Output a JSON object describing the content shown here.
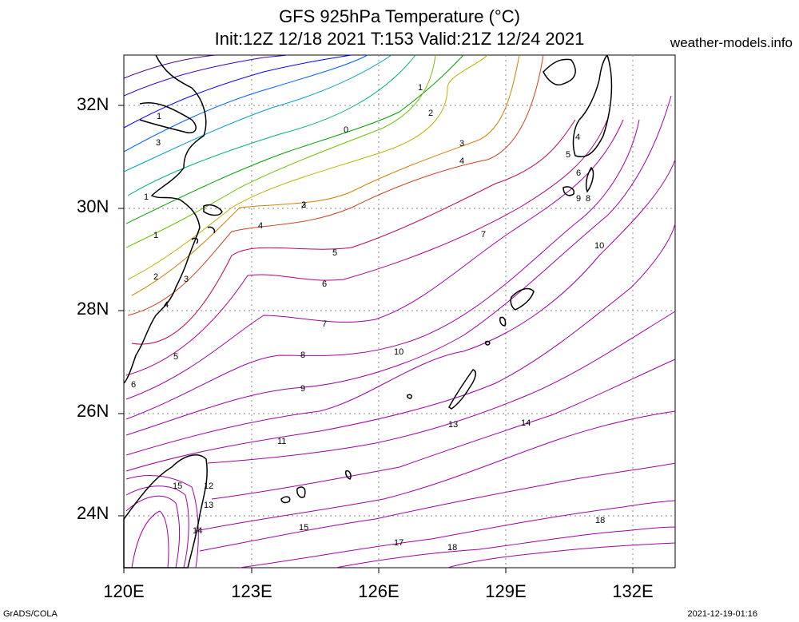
{
  "header": {
    "title_line1": "GFS 925hPa Temperature (°C)",
    "title_line2": "Init:12Z 12/18 2021 T:153 Valid:21Z 12/24 2021",
    "brand": "weather-models.info"
  },
  "footer": {
    "left": "GrADS/COLA",
    "right": "2021-12-19-01:16"
  },
  "axes": {
    "lat_labels": [
      "32N",
      "30N",
      "28N",
      "26N",
      "24N"
    ],
    "lon_labels": [
      "120E",
      "123E",
      "126E",
      "129E",
      "132E"
    ]
  },
  "contour_labels": [
    "1",
    "2",
    "3",
    "4",
    "0",
    "1",
    "2",
    "3",
    "4",
    "5",
    "6",
    "9",
    "8",
    "1",
    "1",
    "3",
    "4",
    "5",
    "7",
    "10",
    "2",
    "3",
    "4",
    "5",
    "6",
    "7",
    "8",
    "9",
    "10",
    "6",
    "11",
    "13",
    "14",
    "15",
    "12",
    "13",
    "14",
    "15",
    "17",
    "18",
    "18"
  ],
  "colors": {
    "cold": "#0000cc",
    "zero": "#00a000",
    "warm": "#a000a0",
    "coast": "#000000",
    "grid": "#888888"
  }
}
